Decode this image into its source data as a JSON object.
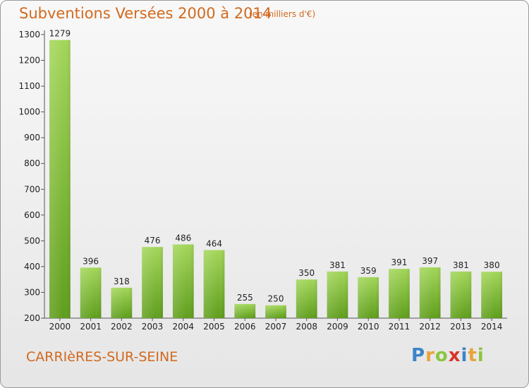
{
  "header": {
    "title": "Subventions Versées 2000 à 2014",
    "subtitle": "(en milliers d'€)"
  },
  "footer": {
    "commune": "CARRIèRES-SUR-SEINE",
    "logo_letters": [
      "P",
      "r",
      "o",
      "x",
      "i",
      "t",
      "i"
    ]
  },
  "colors": {
    "title": "#d2691e",
    "bar_top": "#a3d65a",
    "bar_bottom": "#5f9e1c",
    "axis": "#555555",
    "grid": "#cfcfcf"
  },
  "chart_data": {
    "type": "bar",
    "categories": [
      "2000",
      "2001",
      "2002",
      "2003",
      "2004",
      "2005",
      "2006",
      "2007",
      "2008",
      "2009",
      "2010",
      "2011",
      "2012",
      "2013",
      "2014"
    ],
    "values": [
      1279,
      396,
      318,
      476,
      486,
      464,
      255,
      250,
      350,
      381,
      359,
      391,
      397,
      381,
      380
    ],
    "data_labels": [
      "1279",
      "396",
      "318",
      "476",
      "486",
      "464",
      "255",
      "250",
      "350",
      "381",
      "359",
      "391",
      "397",
      "381",
      "380"
    ],
    "title": "Subventions Versées 2000 à 2014",
    "xlabel": "",
    "ylabel": "",
    "ylim": [
      200,
      1300
    ],
    "yticks": [
      200,
      300,
      400,
      500,
      600,
      700,
      800,
      900,
      1000,
      1100,
      1200,
      1300
    ],
    "ytick_labels": [
      "200",
      "300",
      "400",
      "500",
      "600",
      "700",
      "800",
      "900",
      "1000",
      "1100",
      "1200",
      "1300"
    ],
    "grid": false,
    "legend": "none"
  }
}
